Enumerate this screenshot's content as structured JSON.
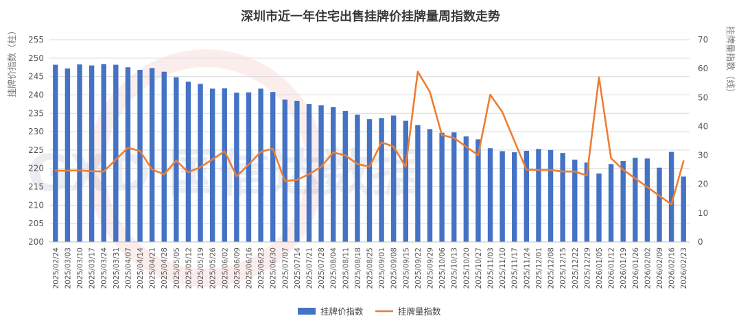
{
  "chart_data": {
    "type": "bar+line",
    "title": "深圳市近一年住宅出售挂牌价挂牌量周指数走势",
    "ylabel_left": "挂牌价指数（柱）",
    "ylabel_right": "挂牌量指数（线）",
    "ylim_left": [
      200,
      255
    ],
    "yticks_left": [
      200,
      205,
      210,
      215,
      220,
      225,
      230,
      235,
      240,
      245,
      250,
      255
    ],
    "ylim_right": [
      0,
      70
    ],
    "yticks_right": [
      0,
      10,
      20,
      30,
      40,
      50,
      60,
      70
    ],
    "grid": true,
    "legend_position": "bottom",
    "categories": [
      "2025/02/24",
      "2025/03/03",
      "2025/03/10",
      "2025/03/17",
      "2025/03/24",
      "2025/03/31",
      "2025/04/07",
      "2025/04/14",
      "2025/04/21",
      "2025/04/28",
      "2025/05/05",
      "2025/05/12",
      "2025/05/19",
      "2025/05/26",
      "2025/06/02",
      "2025/06/09",
      "2025/06/16",
      "2025/06/23",
      "2025/06/30",
      "2025/07/07",
      "2025/07/14",
      "2025/07/21",
      "2025/07/28",
      "2025/08/04",
      "2025/08/11",
      "2025/08/18",
      "2025/08/25",
      "2025/09/01",
      "2025/09/08",
      "2025/09/15",
      "2025/09/22",
      "2025/09/29",
      "2025/10/06",
      "2025/10/13",
      "2025/10/20",
      "2025/10/27",
      "2025/11/03",
      "2025/11/10",
      "2025/11/17",
      "2025/11/24",
      "2025/12/01",
      "2025/12/08",
      "2025/12/15",
      "2025/12/22",
      "2025/12/29",
      "2026/01/05",
      "2026/01/12",
      "2026/01/19",
      "2026/01/26",
      "2026/02/02",
      "2026/02/09",
      "2026/02/16",
      "2026/02/23"
    ],
    "series": [
      {
        "name": "挂牌价指数",
        "type": "bar",
        "axis": "left",
        "color": "#4472C4",
        "values": [
          248.2,
          247.2,
          248.3,
          248.0,
          248.4,
          248.2,
          247.5,
          246.8,
          247.3,
          246.3,
          244.8,
          243.6,
          243.0,
          241.7,
          241.8,
          240.6,
          240.7,
          241.7,
          240.8,
          238.7,
          238.4,
          237.5,
          237.2,
          236.7,
          235.6,
          234.6,
          233.4,
          233.7,
          234.4,
          233.0,
          231.8,
          230.7,
          229.7,
          229.8,
          228.7,
          227.9,
          225.5,
          224.7,
          224.4,
          224.8,
          225.3,
          225.0,
          224.2,
          222.4,
          221.6,
          218.6,
          221.2,
          222.0,
          222.9,
          222.7,
          220.2,
          224.5,
          217.8
        ]
      },
      {
        "name": "挂牌量指数",
        "type": "line",
        "axis": "right",
        "color": "#ED7D31",
        "values": [
          24.7,
          24.7,
          24.8,
          24.5,
          24.4,
          28.5,
          32.6,
          31.5,
          25.1,
          23.4,
          28.2,
          24.1,
          25.9,
          28.6,
          31.4,
          22.7,
          26.8,
          31.2,
          32.3,
          21.1,
          21.5,
          23.5,
          26.0,
          31.0,
          30.0,
          27.0,
          26.0,
          34.5,
          33.0,
          26.0,
          59.0,
          52.0,
          37.0,
          36.0,
          33.0,
          30.0,
          51.0,
          45.0,
          35.0,
          25.0,
          24.9,
          24.9,
          24.4,
          24.4,
          23.0,
          57.0,
          29.0,
          25.0,
          22.0,
          19.0,
          16.0,
          13.0,
          28.0
        ]
      }
    ],
    "watermark": "GXD 国信达数据"
  }
}
